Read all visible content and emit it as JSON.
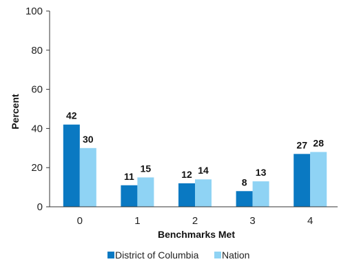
{
  "chart_data": {
    "type": "bar",
    "categories": [
      "0",
      "1",
      "2",
      "3",
      "4"
    ],
    "series": [
      {
        "name": "District of Columbia",
        "values": [
          42,
          11,
          12,
          8,
          27
        ],
        "color": "#0a79c2"
      },
      {
        "name": "Nation",
        "values": [
          30,
          15,
          14,
          13,
          28
        ],
        "color": "#8fd3f4"
      }
    ],
    "xlabel": "Benchmarks Met",
    "ylabel": "Percent",
    "ylim": [
      0,
      100
    ],
    "yticks": [
      0,
      20,
      40,
      60,
      80,
      100
    ],
    "grid": false,
    "legend_position": "bottom"
  }
}
